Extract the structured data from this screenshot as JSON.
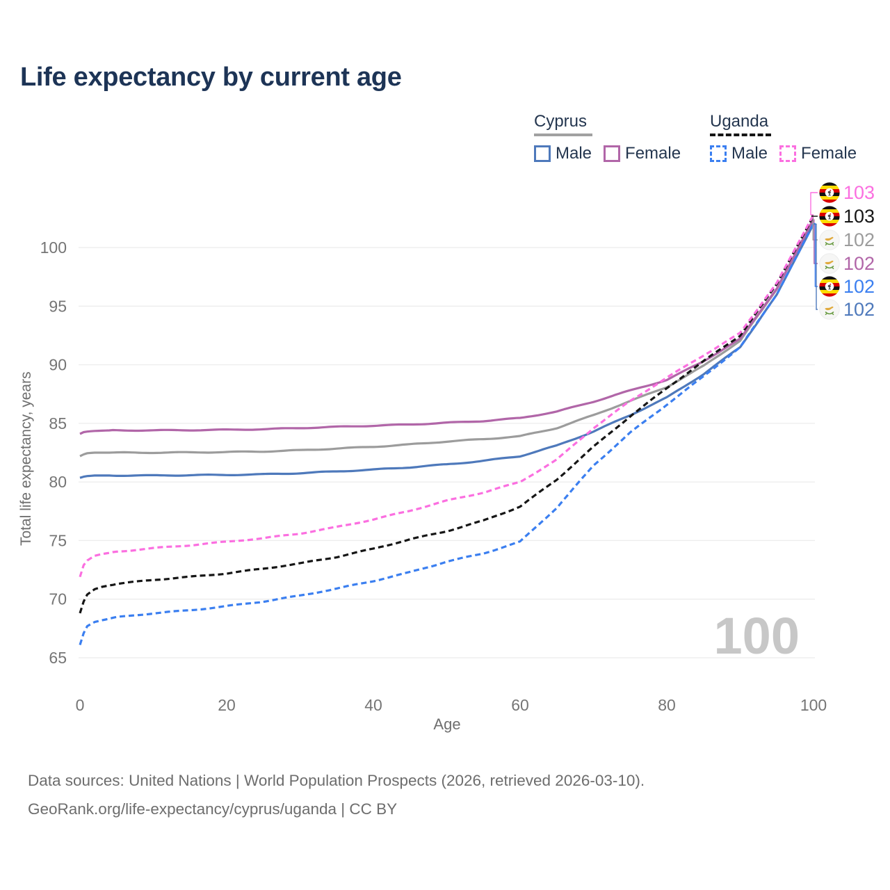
{
  "title": "Life expectancy by current age",
  "watermark": "100",
  "legend": {
    "groups": [
      {
        "country": "Cyprus",
        "line_style": "solid",
        "line_color": "#a1a1a1",
        "items": [
          {
            "label": "Male",
            "color": "#4e79bb",
            "dashed": false
          },
          {
            "label": "Female",
            "color": "#b166a8",
            "dashed": false
          }
        ]
      },
      {
        "country": "Uganda",
        "line_style": "dashed",
        "line_color": "#151515",
        "items": [
          {
            "label": "Male",
            "color": "#3b7ff0",
            "dashed": true
          },
          {
            "label": "Female",
            "color": "#fb6fe0",
            "dashed": true
          }
        ]
      }
    ]
  },
  "footer": {
    "line1": "Data sources: United Nations | World Population Prospects (2026, retrieved 2026-03-10).",
    "line2": "GeoRank.org/life-expectancy/cyprus/uganda | CC BY"
  },
  "chart_data": {
    "type": "line",
    "title": "Life expectancy by current age",
    "xlabel": "Age",
    "ylabel": "Total life expectancy, years",
    "xlim": [
      0,
      100
    ],
    "ylim": [
      63.5,
      103.5
    ],
    "x_ticks": [
      0,
      20,
      40,
      60,
      80,
      100
    ],
    "y_ticks": [
      65,
      70,
      75,
      80,
      85,
      90,
      95,
      100
    ],
    "grid": "horizontal",
    "legend_position": "top-right",
    "colors": {
      "cyprus_male": "#4e79bb",
      "cyprus_female": "#b166a8",
      "cyprus_total": "#9c9c9c",
      "uganda_male": "#3b7ff0",
      "uganda_female": "#fb6fe0",
      "uganda_total": "#161616",
      "gridline": "#ececec",
      "tick_label": "#757575",
      "watermark": "#c7c7c7"
    },
    "series": [
      {
        "key": "cyprus_total",
        "name": "Cyprus (both sexes)",
        "country": "Cyprus",
        "sex": "both",
        "color": "#9c9c9c",
        "dashed": false,
        "flag": "cyprus",
        "end_label": "102",
        "label_slot": 2,
        "points": [
          [
            0,
            82.2
          ],
          [
            0.5,
            82.35
          ],
          [
            1,
            82.45
          ],
          [
            2,
            82.5
          ],
          [
            4,
            82.5
          ],
          [
            10,
            82.5
          ],
          [
            15,
            82.52
          ],
          [
            20,
            82.55
          ],
          [
            25,
            82.6
          ],
          [
            30,
            82.7
          ],
          [
            35,
            82.85
          ],
          [
            40,
            83.0
          ],
          [
            45,
            83.2
          ],
          [
            50,
            83.45
          ],
          [
            55,
            83.65
          ],
          [
            60,
            83.9
          ],
          [
            65,
            84.6
          ],
          [
            70,
            85.7
          ],
          [
            75,
            86.9
          ],
          [
            80,
            88.1
          ],
          [
            85,
            89.9
          ],
          [
            90,
            92.05
          ],
          [
            95,
            96.45
          ],
          [
            100,
            102.45
          ]
        ]
      },
      {
        "key": "cyprus_female",
        "name": "Cyprus Female",
        "country": "Cyprus",
        "sex": "female",
        "color": "#b166a8",
        "dashed": false,
        "flag": "cyprus",
        "end_label": "102",
        "label_slot": 3,
        "points": [
          [
            0,
            84.1
          ],
          [
            0.5,
            84.25
          ],
          [
            1,
            84.3
          ],
          [
            2,
            84.35
          ],
          [
            4,
            84.4
          ],
          [
            10,
            84.4
          ],
          [
            15,
            84.42
          ],
          [
            20,
            84.45
          ],
          [
            25,
            84.5
          ],
          [
            30,
            84.6
          ],
          [
            35,
            84.7
          ],
          [
            40,
            84.8
          ],
          [
            45,
            84.9
          ],
          [
            50,
            85.05
          ],
          [
            55,
            85.2
          ],
          [
            60,
            85.45
          ],
          [
            65,
            86.0
          ],
          [
            70,
            86.85
          ],
          [
            75,
            87.8
          ],
          [
            80,
            88.7
          ],
          [
            85,
            90.3
          ],
          [
            90,
            92.2
          ],
          [
            95,
            96.5
          ],
          [
            100,
            102.35
          ]
        ]
      },
      {
        "key": "cyprus_male",
        "name": "Cyprus Male",
        "country": "Cyprus",
        "sex": "male",
        "color": "#4e79bb",
        "dashed": false,
        "flag": "cyprus",
        "end_label": "102",
        "label_slot": 5,
        "points": [
          [
            0,
            80.35
          ],
          [
            0.5,
            80.45
          ],
          [
            1,
            80.5
          ],
          [
            2,
            80.55
          ],
          [
            4,
            80.55
          ],
          [
            10,
            80.55
          ],
          [
            15,
            80.58
          ],
          [
            20,
            80.6
          ],
          [
            25,
            80.65
          ],
          [
            30,
            80.75
          ],
          [
            35,
            80.9
          ],
          [
            40,
            81.05
          ],
          [
            45,
            81.25
          ],
          [
            50,
            81.5
          ],
          [
            55,
            81.8
          ],
          [
            60,
            82.2
          ],
          [
            65,
            83.1
          ],
          [
            70,
            84.3
          ],
          [
            75,
            85.7
          ],
          [
            80,
            87.2
          ],
          [
            85,
            89.2
          ],
          [
            90,
            91.5
          ],
          [
            95,
            96.0
          ],
          [
            100,
            102.0
          ]
        ]
      },
      {
        "key": "uganda_total",
        "name": "Uganda (both sexes)",
        "country": "Uganda",
        "sex": "both",
        "color": "#161616",
        "dashed": true,
        "flag": "uganda",
        "end_label": "103",
        "label_slot": 1,
        "points": [
          [
            0,
            68.8
          ],
          [
            0.5,
            69.8
          ],
          [
            1,
            70.4
          ],
          [
            2,
            70.85
          ],
          [
            3,
            71.05
          ],
          [
            5,
            71.3
          ],
          [
            10,
            71.65
          ],
          [
            15,
            71.9
          ],
          [
            20,
            72.2
          ],
          [
            25,
            72.6
          ],
          [
            30,
            73.05
          ],
          [
            35,
            73.6
          ],
          [
            40,
            74.3
          ],
          [
            45,
            75.1
          ],
          [
            50,
            75.8
          ],
          [
            55,
            76.7
          ],
          [
            60,
            77.9
          ],
          [
            65,
            80.2
          ],
          [
            70,
            83.0
          ],
          [
            75,
            85.6
          ],
          [
            80,
            88.0
          ],
          [
            85,
            90.3
          ],
          [
            90,
            92.5
          ],
          [
            95,
            96.9
          ],
          [
            100,
            102.7
          ]
        ]
      },
      {
        "key": "uganda_male",
        "name": "Uganda Male",
        "country": "Uganda",
        "sex": "male",
        "color": "#3b7ff0",
        "dashed": true,
        "flag": "uganda",
        "end_label": "102",
        "label_slot": 4,
        "points": [
          [
            0,
            66.1
          ],
          [
            0.5,
            67.1
          ],
          [
            1,
            67.7
          ],
          [
            2,
            68.05
          ],
          [
            3,
            68.2
          ],
          [
            5,
            68.45
          ],
          [
            10,
            68.8
          ],
          [
            15,
            69.05
          ],
          [
            20,
            69.4
          ],
          [
            25,
            69.8
          ],
          [
            30,
            70.3
          ],
          [
            35,
            70.9
          ],
          [
            40,
            71.55
          ],
          [
            45,
            72.3
          ],
          [
            50,
            73.2
          ],
          [
            55,
            73.9
          ],
          [
            60,
            74.9
          ],
          [
            65,
            77.8
          ],
          [
            70,
            81.4
          ],
          [
            75,
            84.2
          ],
          [
            80,
            86.6
          ],
          [
            85,
            89.0
          ],
          [
            90,
            91.5
          ],
          [
            95,
            96.0
          ],
          [
            100,
            102.05
          ]
        ]
      },
      {
        "key": "uganda_female",
        "name": "Uganda Female",
        "country": "Uganda",
        "sex": "female",
        "color": "#fb6fe0",
        "dashed": true,
        "flag": "uganda",
        "end_label": "103",
        "label_slot": 0,
        "points": [
          [
            0,
            71.9
          ],
          [
            0.5,
            72.9
          ],
          [
            1,
            73.3
          ],
          [
            2,
            73.7
          ],
          [
            3,
            73.85
          ],
          [
            5,
            74.05
          ],
          [
            10,
            74.35
          ],
          [
            15,
            74.6
          ],
          [
            20,
            74.9
          ],
          [
            25,
            75.2
          ],
          [
            30,
            75.6
          ],
          [
            35,
            76.15
          ],
          [
            40,
            76.8
          ],
          [
            45,
            77.55
          ],
          [
            50,
            78.4
          ],
          [
            55,
            79.1
          ],
          [
            60,
            80.0
          ],
          [
            65,
            81.9
          ],
          [
            70,
            84.6
          ],
          [
            75,
            86.9
          ],
          [
            80,
            88.9
          ],
          [
            85,
            90.8
          ],
          [
            90,
            92.7
          ],
          [
            95,
            97.0
          ],
          [
            100,
            102.8
          ]
        ]
      }
    ]
  }
}
